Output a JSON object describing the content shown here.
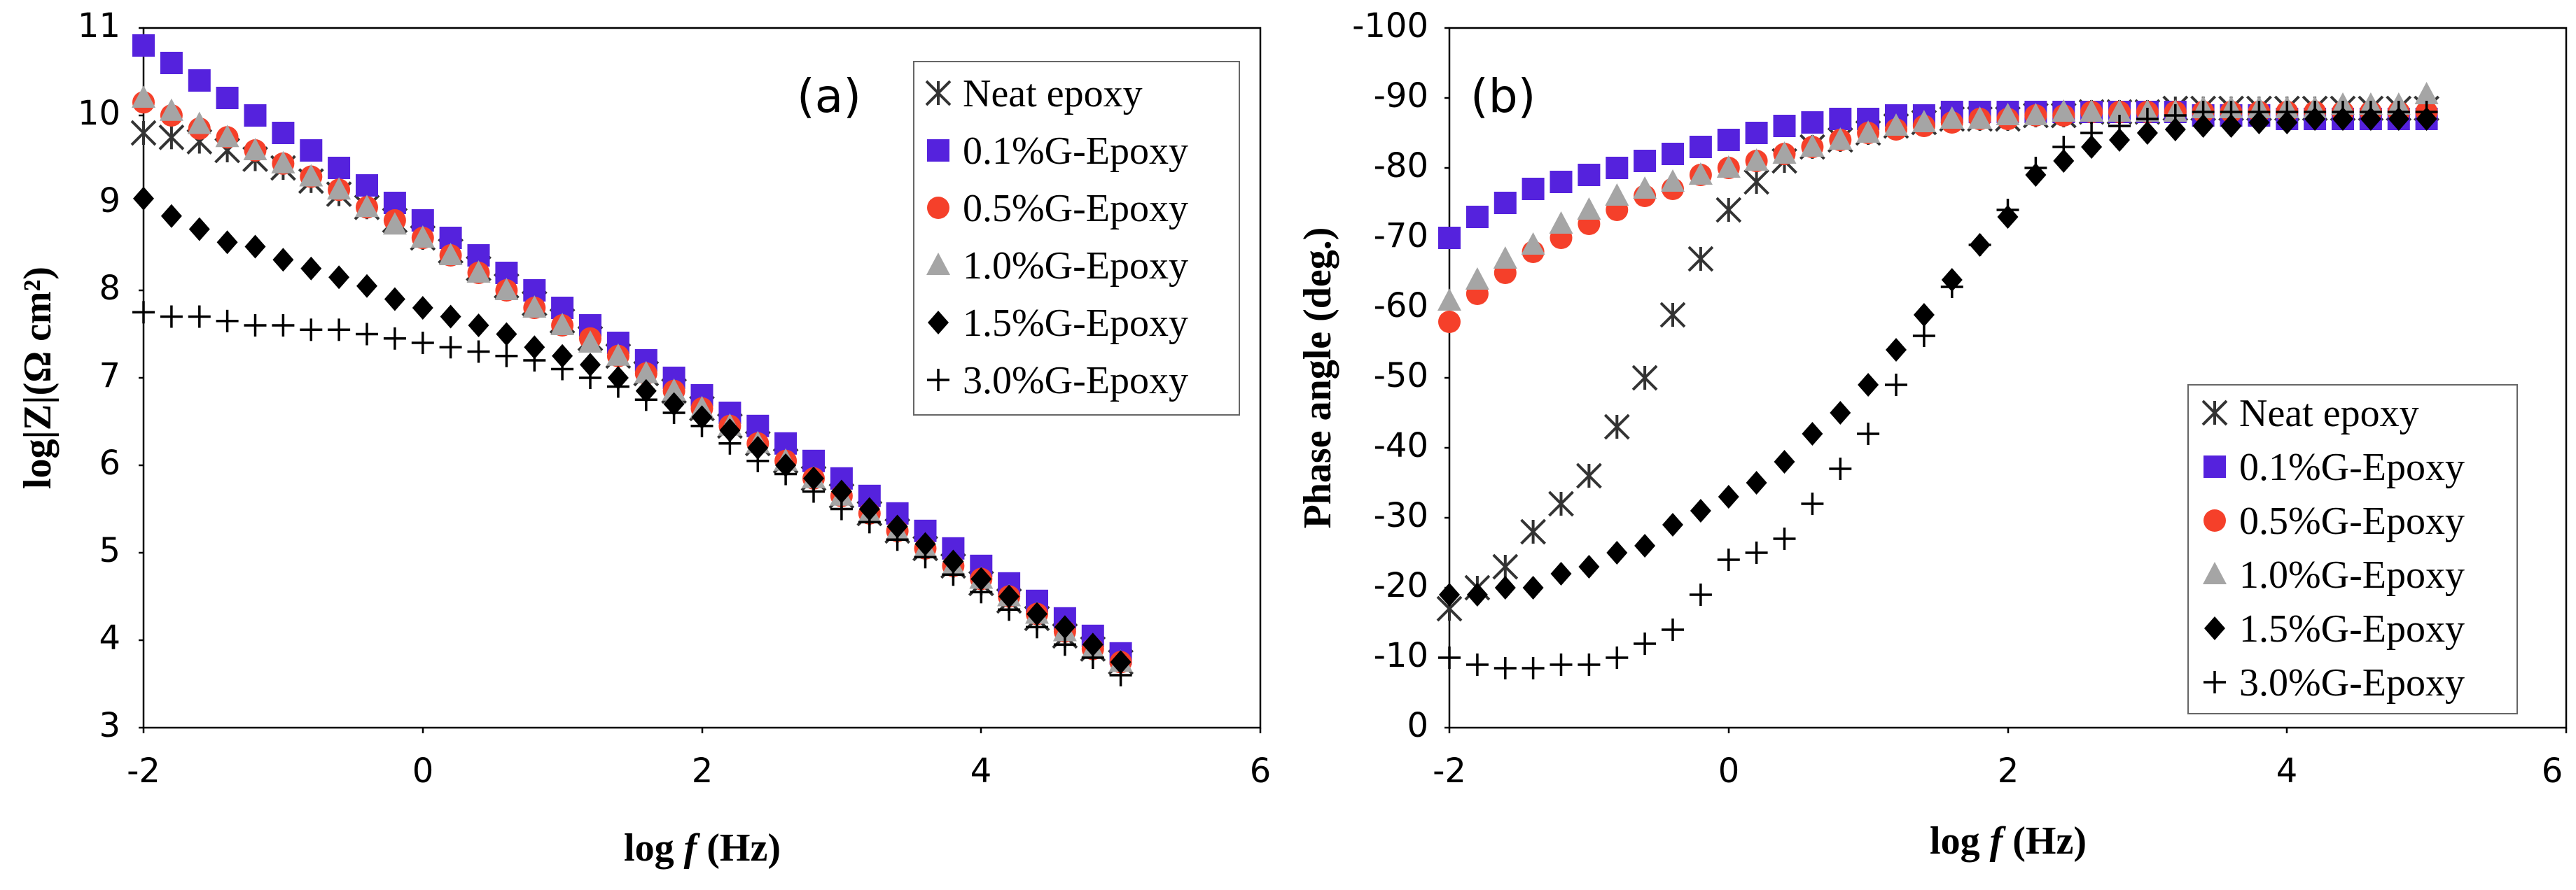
{
  "figure": {
    "series_styles": [
      {
        "name": "Neat epoxy",
        "marker": "asterisk",
        "color": "#333333"
      },
      {
        "name": "0.1%G-Epoxy",
        "marker": "square",
        "color": "#5522dd"
      },
      {
        "name": "0.5%G-Epoxy",
        "marker": "circle",
        "color": "#f5402a"
      },
      {
        "name": "1.0%G-Epoxy",
        "marker": "triangle",
        "color": "#a5a5a5"
      },
      {
        "name": "1.5%G-Epoxy",
        "marker": "diamond",
        "color": "#000000"
      },
      {
        "name": "3.0%G-Epoxy",
        "marker": "plus",
        "color": "#000000"
      }
    ]
  },
  "chart_data": [
    {
      "type": "scatter",
      "panel_label": "(a)",
      "xlabel_prefix": "log",
      "xlabel_var": "f",
      "xlabel_unit": "(Hz)",
      "ylabel": "log|Z|(Ω cm²)",
      "xlim": [
        -2,
        6
      ],
      "ylim": [
        3,
        11
      ],
      "xticks": [
        "-2",
        "0",
        "2",
        "4",
        "6"
      ],
      "yticks": [
        "3",
        "4",
        "5",
        "6",
        "7",
        "8",
        "9",
        "10",
        "11"
      ],
      "legend_position": "top-right",
      "x": [
        -2.0,
        -1.8,
        -1.6,
        -1.4,
        -1.2,
        -1.0,
        -0.8,
        -0.6,
        -0.4,
        -0.2,
        0.0,
        0.2,
        0.4,
        0.6,
        0.8,
        1.0,
        1.2,
        1.4,
        1.6,
        1.8,
        2.0,
        2.2,
        2.4,
        2.6,
        2.8,
        3.0,
        3.2,
        3.4,
        3.6,
        3.8,
        4.0,
        4.2,
        4.4,
        4.6,
        4.8,
        5.0
      ],
      "series": [
        {
          "name": "Neat epoxy",
          "values": [
            9.8,
            9.75,
            9.7,
            9.6,
            9.5,
            9.4,
            9.25,
            9.1,
            8.95,
            8.8,
            8.6,
            8.45,
            8.25,
            8.05,
            7.85,
            7.65,
            7.45,
            7.25,
            7.05,
            6.85,
            6.65,
            6.45,
            6.25,
            6.05,
            5.85,
            5.65,
            5.45,
            5.25,
            5.05,
            4.85,
            4.65,
            4.45,
            4.25,
            4.05,
            3.9,
            3.75
          ]
        },
        {
          "name": "0.1%G-Epoxy",
          "values": [
            10.8,
            10.6,
            10.4,
            10.2,
            10.0,
            9.8,
            9.6,
            9.4,
            9.2,
            9.0,
            8.8,
            8.6,
            8.4,
            8.2,
            8.0,
            7.8,
            7.6,
            7.4,
            7.2,
            7.0,
            6.8,
            6.6,
            6.45,
            6.25,
            6.05,
            5.85,
            5.65,
            5.45,
            5.25,
            5.05,
            4.85,
            4.65,
            4.45,
            4.25,
            4.05,
            3.85
          ]
        },
        {
          "name": "0.5%G-Epoxy",
          "values": [
            10.15,
            10.0,
            9.85,
            9.75,
            9.6,
            9.45,
            9.3,
            9.15,
            8.95,
            8.8,
            8.6,
            8.4,
            8.2,
            8.0,
            7.8,
            7.6,
            7.45,
            7.25,
            7.05,
            6.85,
            6.65,
            6.45,
            6.25,
            6.05,
            5.85,
            5.65,
            5.45,
            5.25,
            5.05,
            4.85,
            4.7,
            4.5,
            4.3,
            4.1,
            3.9,
            3.75
          ]
        },
        {
          "name": "1.0%G-Epoxy",
          "values": [
            10.2,
            10.05,
            9.9,
            9.75,
            9.6,
            9.45,
            9.3,
            9.15,
            8.95,
            8.75,
            8.6,
            8.4,
            8.2,
            8.0,
            7.8,
            7.6,
            7.4,
            7.25,
            7.05,
            6.85,
            6.65,
            6.45,
            6.25,
            6.05,
            5.85,
            5.65,
            5.45,
            5.25,
            5.05,
            4.85,
            4.7,
            4.5,
            4.3,
            4.1,
            3.9,
            3.75
          ]
        },
        {
          "name": "1.5%G-Epoxy",
          "values": [
            9.05,
            8.85,
            8.7,
            8.55,
            8.5,
            8.35,
            8.25,
            8.15,
            8.05,
            7.9,
            7.8,
            7.7,
            7.6,
            7.5,
            7.35,
            7.25,
            7.15,
            7.0,
            6.85,
            6.7,
            6.55,
            6.4,
            6.2,
            6.0,
            5.85,
            5.7,
            5.5,
            5.3,
            5.1,
            4.9,
            4.7,
            4.5,
            4.3,
            4.15,
            3.95,
            3.75
          ]
        },
        {
          "name": "3.0%G-Epoxy",
          "values": [
            7.75,
            7.7,
            7.7,
            7.65,
            7.6,
            7.6,
            7.55,
            7.55,
            7.5,
            7.45,
            7.4,
            7.35,
            7.3,
            7.25,
            7.2,
            7.1,
            7.0,
            6.9,
            6.75,
            6.6,
            6.45,
            6.25,
            6.05,
            5.9,
            5.7,
            5.5,
            5.35,
            5.15,
            4.95,
            4.75,
            4.55,
            4.35,
            4.15,
            3.95,
            3.8,
            3.6
          ]
        }
      ]
    },
    {
      "type": "scatter",
      "panel_label": "(b)",
      "xlabel_prefix": "log",
      "xlabel_var": "f",
      "xlabel_unit": "(Hz)",
      "ylabel": "Phase angle (deg.)",
      "xlim": [
        -2,
        6
      ],
      "ylim": [
        0,
        -100
      ],
      "xticks": [
        "-2",
        "0",
        "2",
        "4",
        "6"
      ],
      "yticks": [
        "0",
        "-10",
        "-20",
        "-30",
        "-40",
        "-50",
        "-60",
        "-70",
        "-80",
        "-90",
        "-100"
      ],
      "legend_position": "bottom-right",
      "x": [
        -2.0,
        -1.8,
        -1.6,
        -1.4,
        -1.2,
        -1.0,
        -0.8,
        -0.6,
        -0.4,
        -0.2,
        0.0,
        0.2,
        0.4,
        0.6,
        0.8,
        1.0,
        1.2,
        1.4,
        1.6,
        1.8,
        2.0,
        2.2,
        2.4,
        2.6,
        2.8,
        3.0,
        3.2,
        3.4,
        3.6,
        3.8,
        4.0,
        4.2,
        4.4,
        4.6,
        4.8,
        5.0
      ],
      "series": [
        {
          "name": "Neat epoxy",
          "values": [
            -17,
            -20,
            -23,
            -28,
            -32,
            -36,
            -43,
            -50,
            -59,
            -67,
            -74,
            -78,
            -81,
            -83,
            -84,
            -85,
            -86,
            -86.5,
            -87,
            -87,
            -87,
            -87.5,
            -87.5,
            -88,
            -88,
            -88,
            -88.5,
            -88.5,
            -88.5,
            -88.5,
            -88.5,
            -88.5,
            -88.5,
            -88.5,
            -88.5,
            -88.5
          ]
        },
        {
          "name": "0.1%G-Epoxy",
          "values": [
            -70,
            -73,
            -75,
            -77,
            -78,
            -79,
            -80,
            -81,
            -82,
            -83,
            -84,
            -85,
            -86,
            -86.5,
            -87,
            -87,
            -87.5,
            -87.5,
            -88,
            -88,
            -88,
            -88,
            -88,
            -88,
            -88,
            -88,
            -88,
            -87.5,
            -87.5,
            -87.5,
            -87,
            -87,
            -87,
            -87,
            -87,
            -87
          ]
        },
        {
          "name": "0.5%G-Epoxy",
          "values": [
            -58,
            -62,
            -65,
            -68,
            -70,
            -72,
            -74,
            -76,
            -77,
            -79,
            -80,
            -81,
            -82,
            -83,
            -84,
            -85,
            -85.5,
            -86,
            -86.5,
            -87,
            -87,
            -87.5,
            -87.5,
            -88,
            -88,
            -88,
            -88,
            -88,
            -88,
            -88,
            -88,
            -88,
            -88,
            -88,
            -88,
            -88
          ]
        },
        {
          "name": "1.0%G-Epoxy",
          "values": [
            -61,
            -64,
            -67,
            -69,
            -72,
            -74,
            -76,
            -77,
            -78,
            -79,
            -80,
            -81,
            -82,
            -83,
            -84,
            -85,
            -86,
            -86.5,
            -87,
            -87,
            -87.5,
            -87.5,
            -88,
            -88,
            -88,
            -88,
            -88,
            -88.5,
            -88.5,
            -88.5,
            -88.5,
            -88.5,
            -89,
            -89,
            -89,
            -90.5
          ]
        },
        {
          "name": "1.5%G-Epoxy",
          "values": [
            -19,
            -19,
            -20,
            -20,
            -22,
            -23,
            -25,
            -26,
            -29,
            -31,
            -33,
            -35,
            -38,
            -42,
            -45,
            -49,
            -54,
            -59,
            -64,
            -69,
            -73,
            -79,
            -81,
            -83,
            -84,
            -85,
            -85.5,
            -86,
            -86,
            -86.5,
            -86.5,
            -87,
            -87,
            -87,
            -87,
            -87
          ]
        },
        {
          "name": "3.0%G-Epoxy",
          "values": [
            -10,
            -9,
            -8.5,
            -8.5,
            -9,
            -9,
            -10,
            -12,
            -14,
            -19,
            -24,
            -25,
            -27,
            -32,
            -37,
            -42,
            -49,
            -56,
            -63,
            -69,
            -74,
            -80,
            -83,
            -85,
            -86,
            -87,
            -87.5,
            -88,
            -88,
            -88,
            -88,
            -88,
            -88,
            -88,
            -88,
            -88
          ]
        }
      ]
    }
  ]
}
